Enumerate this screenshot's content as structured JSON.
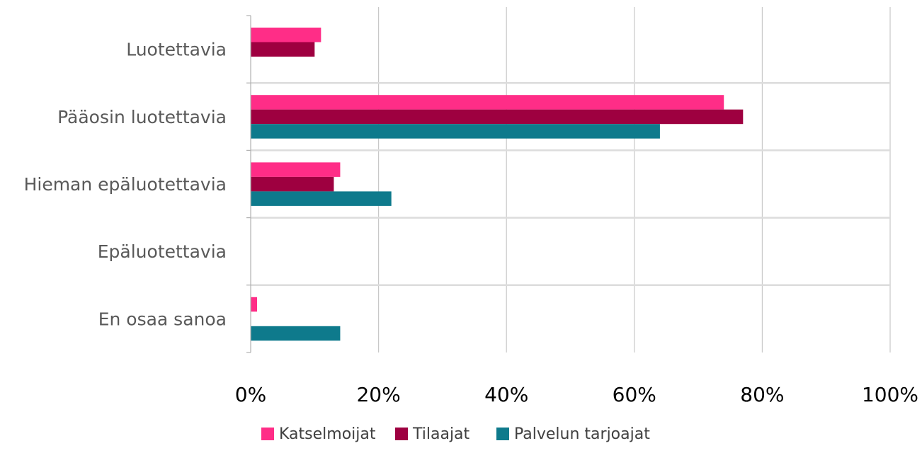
{
  "chart_data": {
    "type": "bar",
    "orientation": "horizontal",
    "categories": [
      "Luotettavia",
      "Pääosin luotettavia",
      "Hieman epäluotettavia",
      "Epäluotettavia",
      "En osaa sanoa"
    ],
    "series": [
      {
        "name": "Katselmoijat",
        "color": "#FF2D87",
        "values": [
          11,
          74,
          14,
          0,
          1
        ]
      },
      {
        "name": "Tilaajat",
        "color": "#9E0040",
        "values": [
          10,
          77,
          13,
          0,
          0
        ]
      },
      {
        "name": "Palvelun tarjoajat",
        "color": "#0E7A8C",
        "values": [
          0,
          64,
          22,
          0,
          14
        ]
      }
    ],
    "xlim": [
      0,
      100
    ],
    "x_ticks": [
      0,
      20,
      40,
      60,
      80,
      100
    ],
    "x_tick_labels": [
      "0%",
      "20%",
      "40%",
      "60%",
      "80%",
      "100%"
    ],
    "grid": true,
    "legend_position": "bottom",
    "title": "",
    "xlabel": "",
    "ylabel": ""
  }
}
